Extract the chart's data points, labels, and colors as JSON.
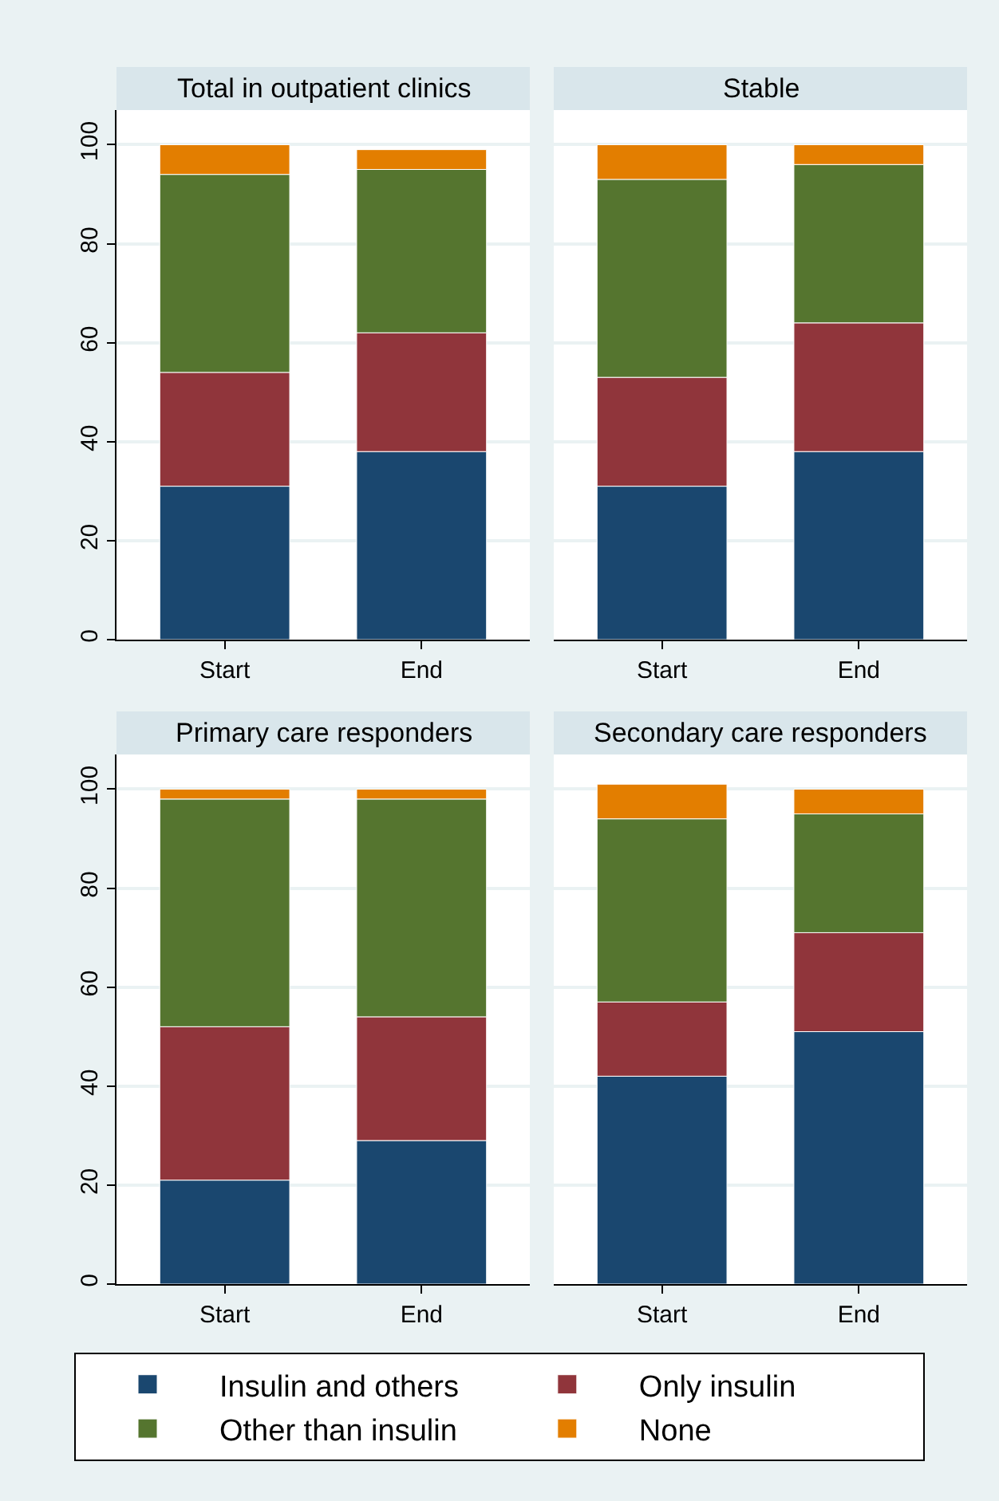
{
  "chart_data": [
    {
      "type": "bar",
      "title": "Total in outpatient clinics",
      "stacked": true,
      "categories": [
        "Start",
        "End"
      ],
      "ylim": [
        0,
        107
      ],
      "yticks": [
        0,
        20,
        40,
        60,
        80,
        100
      ],
      "grid": "y",
      "legend": "bottom",
      "series": [
        {
          "name": "Insulin and others",
          "color": "#1a476f",
          "values": [
            31,
            38
          ]
        },
        {
          "name": "Only insulin",
          "color": "#90353b",
          "values": [
            23,
            24
          ]
        },
        {
          "name": "Other than insulin",
          "color": "#55752f",
          "values": [
            40,
            33
          ]
        },
        {
          "name": "None",
          "color": "#e37e00",
          "values": [
            6,
            4
          ]
        }
      ]
    },
    {
      "type": "bar",
      "title": "Stable",
      "stacked": true,
      "categories": [
        "Start",
        "End"
      ],
      "ylim": [
        0,
        107
      ],
      "yticks": [
        0,
        20,
        40,
        60,
        80,
        100
      ],
      "grid": "y",
      "tick_labels": "x",
      "series": [
        {
          "color": "#1a476f",
          "values": [
            31,
            38
          ]
        },
        {
          "color": "#90353b",
          "values": [
            22,
            26
          ]
        },
        {
          "color": "#55752f",
          "values": [
            40,
            32
          ]
        },
        {
          "color": "#e37e00",
          "values": [
            7,
            4
          ]
        }
      ]
    },
    {
      "type": "bar",
      "title": "Primary care responders",
      "stacked": true,
      "categories": [
        "Start",
        "End"
      ],
      "ylim": [
        0,
        107
      ],
      "yticks": [
        0,
        20,
        40,
        60,
        80,
        100
      ],
      "grid": "y",
      "series": [
        {
          "color": "#1a476f",
          "values": [
            21,
            29
          ]
        },
        {
          "color": "#90353b",
          "values": [
            31,
            25
          ]
        },
        {
          "color": "#55752f",
          "values": [
            46,
            44
          ]
        },
        {
          "color": "#e37e00",
          "values": [
            2,
            2
          ]
        }
      ]
    },
    {
      "type": "bar",
      "title": "Secondary care responders",
      "stacked": true,
      "categories": [
        "Start",
        "End"
      ],
      "ylim": [
        0,
        107
      ],
      "yticks": [
        0,
        20,
        40,
        60,
        80,
        100
      ],
      "grid": "y",
      "tick_labels": "x",
      "series": [
        {
          "color": "#1a476f",
          "values": [
            42,
            51
          ]
        },
        {
          "color": "#90353b",
          "values": [
            15,
            20
          ]
        },
        {
          "color": "#55752f",
          "values": [
            37,
            24
          ]
        },
        {
          "color": "#e37e00",
          "values": [
            7,
            5
          ]
        }
      ]
    }
  ]
}
